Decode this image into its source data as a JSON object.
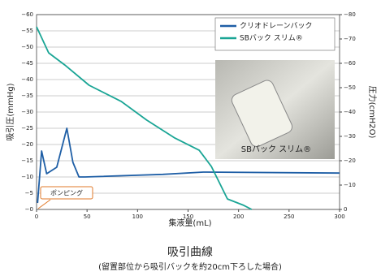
{
  "chart_data": {
    "type": "line",
    "title": "吸引曲線",
    "subtitle": "(留置部位から吸引バックを約20cm下ろした場合)",
    "x_label": "集液量(mL)",
    "y_label": "吸引圧(mmHg)",
    "y2_label": "圧力(cmH2O)",
    "annotations": [
      "ポンピング",
      "SBバック スリム®"
    ],
    "xlim": [
      0,
      300
    ],
    "xticks": [
      0,
      50,
      100,
      150,
      200,
      250,
      300
    ],
    "ylim": [
      0,
      -60
    ],
    "yticks": [
      {
        "value": 0,
        "label": "−0"
      },
      {
        "value": -5,
        "label": "−5"
      },
      {
        "value": -10,
        "label": "−10"
      },
      {
        "value": -15,
        "label": "−15"
      },
      {
        "value": -20,
        "label": "−20"
      },
      {
        "value": -25,
        "label": "−25"
      },
      {
        "value": -30,
        "label": "−30"
      },
      {
        "value": -35,
        "label": "−35"
      },
      {
        "value": -40,
        "label": "−40"
      },
      {
        "value": -45,
        "label": "−45"
      },
      {
        "value": -50,
        "label": "−50"
      },
      {
        "value": -55,
        "label": "−55"
      },
      {
        "value": -60,
        "label": "−60"
      }
    ],
    "y2lim": [
      0,
      -80
    ],
    "y2ticks": [
      0,
      {
        "value": -10,
        "label": "−10"
      },
      {
        "value": -20,
        "label": "−20"
      },
      {
        "value": -30,
        "label": "−30"
      },
      {
        "value": -40,
        "label": "−40"
      },
      {
        "value": -50,
        "label": "−50"
      },
      {
        "value": -60,
        "label": "−60"
      },
      {
        "value": -70,
        "label": "−70"
      },
      {
        "value": -80,
        "label": "−80"
      }
    ],
    "grid": true,
    "series": [
      {
        "name": "クリオドレーンバック",
        "color": "#1f5fa6",
        "x": [
          1,
          5,
          10,
          20,
          30,
          36,
          42,
          48,
          125,
          165,
          300
        ],
        "values": [
          -2,
          -18,
          -11,
          -13,
          -25,
          -14.5,
          -10,
          -10,
          -10.8,
          -11.5,
          -11.2
        ]
      },
      {
        "name": "SBバック スリム®",
        "color": "#1aa595",
        "axis": "y2",
        "x": [
          0,
          12,
          28,
          52,
          84,
          109,
          137,
          161,
          173,
          189,
          205,
          213
        ],
        "values": [
          -75,
          -64.3,
          -59.3,
          -51,
          -44.3,
          -36.7,
          -29.3,
          -24.3,
          -17.7,
          -4.3,
          -1.7,
          0
        ]
      }
    ]
  }
}
